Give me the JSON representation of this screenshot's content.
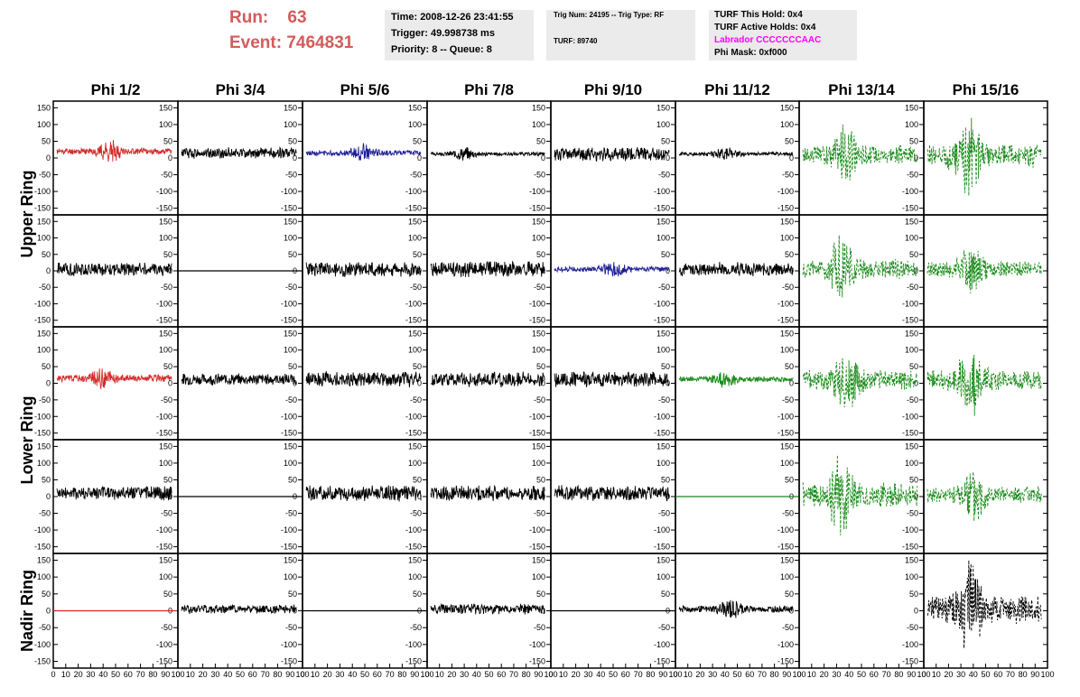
{
  "header": {
    "run_label": "Run:",
    "run_value": "63",
    "event_label": "Event:",
    "event_value": "7464831",
    "time_text": "Time: 2008-12-26 23:41:55",
    "trigger_text": "Trigger: 49.998738 ms",
    "priority_text": "Priority: 8 -- Queue: 8",
    "trig_text": "Trig Num: 24195 -- Trig Type: RF",
    "turf_text": "TURF: 89740",
    "turf_hold_text": "TURF This Hold: 0x4",
    "turf_active_text": "TURF Active Holds: 0x4",
    "labrador_text": "Labrador CCCCCCCAAC",
    "phi_mask_text": "Phi Mask: 0xf000"
  },
  "colors": {
    "title_red": "#d35b5b",
    "info_box_bg": "#ebebeb",
    "labrador": "#ff00ff",
    "black": "#000000",
    "red": "#d42a2a",
    "blue": "#1f1f96",
    "green": "#188a18"
  },
  "chart_data": {
    "type": "line",
    "columns": [
      "Phi 1/2",
      "Phi 3/4",
      "Phi 5/6",
      "Phi 7/8",
      "Phi 9/10",
      "Phi 11/12",
      "Phi 13/14",
      "Phi 15/16"
    ],
    "rows": [
      "Upper Ring",
      "Upper Ring",
      "Lower Ring",
      "Lower Ring",
      "Nadir Ring"
    ],
    "row_labels": [
      "Upper Ring",
      "Lower Ring",
      "Nadir Ring"
    ],
    "x_range": [
      0,
      100
    ],
    "y_range": [
      -170,
      170
    ],
    "y_ticks": [
      "150",
      "100",
      "50",
      "0",
      "-50",
      "-100",
      "-150"
    ],
    "x_ticks": [
      "0",
      "10",
      "20",
      "30",
      "40",
      "50",
      "60",
      "70",
      "80",
      "90",
      "100"
    ],
    "grid": false,
    "panels": [
      [
        {
          "color": "red",
          "style": "solid",
          "mean": 20,
          "amp": 30,
          "burst": 45,
          "seed": 11
        },
        {
          "color": "black",
          "style": "solid",
          "mean": 15,
          "amp": 14,
          "burst": 0,
          "seed": 12
        },
        {
          "color": "blue",
          "style": "solid",
          "mean": 15,
          "amp": 25,
          "burst": 48,
          "seed": 13
        },
        {
          "color": "black",
          "style": "solid",
          "mean": 12,
          "amp": 18,
          "burst": 30,
          "seed": 14
        },
        {
          "color": "black",
          "style": "solid",
          "mean": 12,
          "amp": 18,
          "burst": 0,
          "seed": 15
        },
        {
          "color": "black",
          "style": "solid",
          "mean": 12,
          "amp": 18,
          "burst": 40,
          "seed": 16
        },
        {
          "color": "green",
          "style": "dashed",
          "mean": 10,
          "amp": 85,
          "burst": 38,
          "seed": 17
        },
        {
          "color": "green",
          "style": "dashed",
          "mean": 5,
          "amp": 110,
          "burst": 37,
          "seed": 18
        }
      ],
      [
        {
          "color": "black",
          "style": "solid",
          "mean": 5,
          "amp": 18,
          "burst": 0,
          "seed": 21
        },
        {
          "color": "black",
          "style": "flat",
          "mean": 0,
          "amp": 0,
          "burst": 0,
          "seed": 22
        },
        {
          "color": "black",
          "style": "solid",
          "mean": 5,
          "amp": 20,
          "burst": 0,
          "seed": 23
        },
        {
          "color": "black",
          "style": "solid",
          "mean": 5,
          "amp": 20,
          "burst": 0,
          "seed": 24
        },
        {
          "color": "blue",
          "style": "solid",
          "mean": 5,
          "amp": 25,
          "burst": 50,
          "seed": 25
        },
        {
          "color": "black",
          "style": "solid",
          "mean": 5,
          "amp": 18,
          "burst": 0,
          "seed": 26
        },
        {
          "color": "green",
          "style": "dashed",
          "mean": 5,
          "amp": 90,
          "burst": 34,
          "seed": 27
        },
        {
          "color": "green",
          "style": "dashed",
          "mean": 5,
          "amp": 75,
          "burst": 38,
          "seed": 28
        }
      ],
      [
        {
          "color": "red",
          "style": "solid",
          "mean": 15,
          "amp": 32,
          "burst": 40,
          "seed": 31
        },
        {
          "color": "black",
          "style": "solid",
          "mean": 12,
          "amp": 15,
          "burst": 0,
          "seed": 32
        },
        {
          "color": "black",
          "style": "solid",
          "mean": 12,
          "amp": 20,
          "burst": 0,
          "seed": 33
        },
        {
          "color": "black",
          "style": "solid",
          "mean": 12,
          "amp": 20,
          "burst": 0,
          "seed": 34
        },
        {
          "color": "black",
          "style": "solid",
          "mean": 12,
          "amp": 20,
          "burst": 0,
          "seed": 35
        },
        {
          "color": "green",
          "style": "solid",
          "mean": 12,
          "amp": 25,
          "burst": 40,
          "seed": 36
        },
        {
          "color": "green",
          "style": "dashed",
          "mean": 10,
          "amp": 95,
          "burst": 38,
          "seed": 37
        },
        {
          "color": "green",
          "style": "dashed",
          "mean": 10,
          "amp": 95,
          "burst": 38,
          "seed": 38
        }
      ],
      [
        {
          "color": "black",
          "style": "solid",
          "mean": 10,
          "amp": 18,
          "burst": 0,
          "seed": 41
        },
        {
          "color": "black",
          "style": "flat",
          "mean": 0,
          "amp": 0,
          "burst": 0,
          "seed": 42
        },
        {
          "color": "black",
          "style": "solid",
          "mean": 10,
          "amp": 20,
          "burst": 0,
          "seed": 43
        },
        {
          "color": "black",
          "style": "solid",
          "mean": 10,
          "amp": 20,
          "burst": 0,
          "seed": 44
        },
        {
          "color": "black",
          "style": "solid",
          "mean": 10,
          "amp": 20,
          "burst": 0,
          "seed": 45
        },
        {
          "color": "green",
          "style": "flat",
          "mean": 0,
          "amp": 0,
          "burst": 0,
          "seed": 46
        },
        {
          "color": "green",
          "style": "dashed",
          "mean": 5,
          "amp": 110,
          "burst": 34,
          "seed": 47
        },
        {
          "color": "green",
          "style": "dashed",
          "mean": 5,
          "amp": 80,
          "burst": 40,
          "seed": 48
        }
      ],
      [
        {
          "color": "red",
          "style": "flat",
          "mean": 0,
          "amp": 0,
          "burst": 0,
          "seed": 51
        },
        {
          "color": "black",
          "style": "solid",
          "mean": 5,
          "amp": 12,
          "burst": 0,
          "seed": 52
        },
        {
          "color": "black",
          "style": "flat",
          "mean": 0,
          "amp": 0,
          "burst": 0,
          "seed": 53
        },
        {
          "color": "black",
          "style": "solid",
          "mean": 5,
          "amp": 14,
          "burst": 0,
          "seed": 54
        },
        {
          "color": "black",
          "style": "flat",
          "mean": 0,
          "amp": 0,
          "burst": 0,
          "seed": 55
        },
        {
          "color": "black",
          "style": "solid",
          "mean": 5,
          "amp": 30,
          "burst": 45,
          "seed": 56
        },
        {
          "color": "black",
          "style": "empty",
          "mean": 0,
          "amp": 0,
          "burst": 0,
          "seed": 57
        },
        {
          "color": "black",
          "style": "dashed",
          "mean": 5,
          "amp": 130,
          "burst": 38,
          "seed": 58
        }
      ]
    ]
  }
}
